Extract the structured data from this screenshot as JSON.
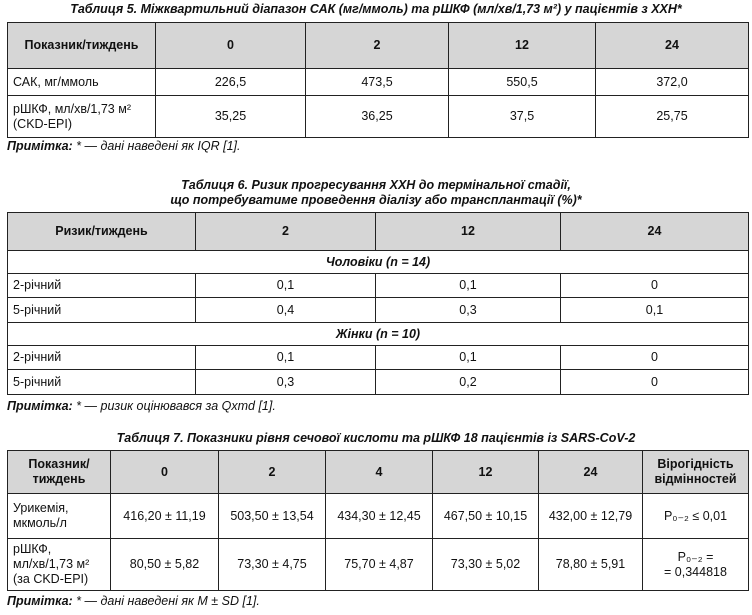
{
  "table5": {
    "title": "Таблиця 5. Міжквартильний діапазон САК (мг/ммоль) та рШКФ (мл/хв/1,73 м²) у пацієнтів з ХХН*",
    "header": [
      "Показник/тиждень",
      "0",
      "2",
      "12",
      "24"
    ],
    "rows": [
      [
        "САК, мг/ммоль",
        "226,5",
        "473,5",
        "550,5",
        "372,0"
      ],
      [
        "рШКФ, мл/хв/1,73 м²\n(CKD-EPI)",
        "35,25",
        "36,25",
        "37,5",
        "25,75"
      ]
    ],
    "note": {
      "label": "Примітка:",
      "text": " * — дані наведені як IQR [1]."
    }
  },
  "table6": {
    "title": "Таблиця 6. Ризик прогресування ХХН до термінальної стадії,\nщо потребуватиме проведення діалізу або трансплантації (%)*",
    "header": [
      "Ризик/тиждень",
      "2",
      "12",
      "24"
    ],
    "groups": [
      {
        "label": "Чоловіки (n = 14)",
        "rows": [
          [
            "2-річний",
            "0,1",
            "0,1",
            "0"
          ],
          [
            "5-річний",
            "0,4",
            "0,3",
            "0,1"
          ]
        ]
      },
      {
        "label": "Жінки (n = 10)",
        "rows": [
          [
            "2-річний",
            "0,1",
            "0,1",
            "0"
          ],
          [
            "5-річний",
            "0,3",
            "0,2",
            "0"
          ]
        ]
      }
    ],
    "note": {
      "label": "Примітка:",
      "text": " * — ризик оцінювався за Qxmd [1]."
    }
  },
  "table7": {
    "title": "Таблиця 7. Показники рівня сечової кислоти та рШКФ 18 пацієнтів із SARS-CoV-2",
    "header": [
      "Показник/\nтиждень",
      "0",
      "2",
      "4",
      "12",
      "24",
      "Вірогідність\nвідмінностей"
    ],
    "rows": [
      [
        "Урикемія,\nмкмоль/л",
        "416,20 ± 11,19",
        "503,50 ± 13,54",
        "434,30 ± 12,45",
        "467,50 ± 10,15",
        "432,00 ± 12,79",
        "P₀₋₂ ≤ 0,01"
      ],
      [
        "рШКФ,\nмл/хв/1,73 м²\n(за CKD-EPI)",
        "80,50 ± 5,82",
        "73,30 ± 4,75",
        "75,70 ± 4,87",
        "73,30 ± 5,02",
        "78,80 ± 5,91",
        "P₀₋₂ =\n= 0,344818"
      ]
    ],
    "note": {
      "label": "Примітка:",
      "text": " * — дані наведені як M ± SD [1]."
    }
  }
}
